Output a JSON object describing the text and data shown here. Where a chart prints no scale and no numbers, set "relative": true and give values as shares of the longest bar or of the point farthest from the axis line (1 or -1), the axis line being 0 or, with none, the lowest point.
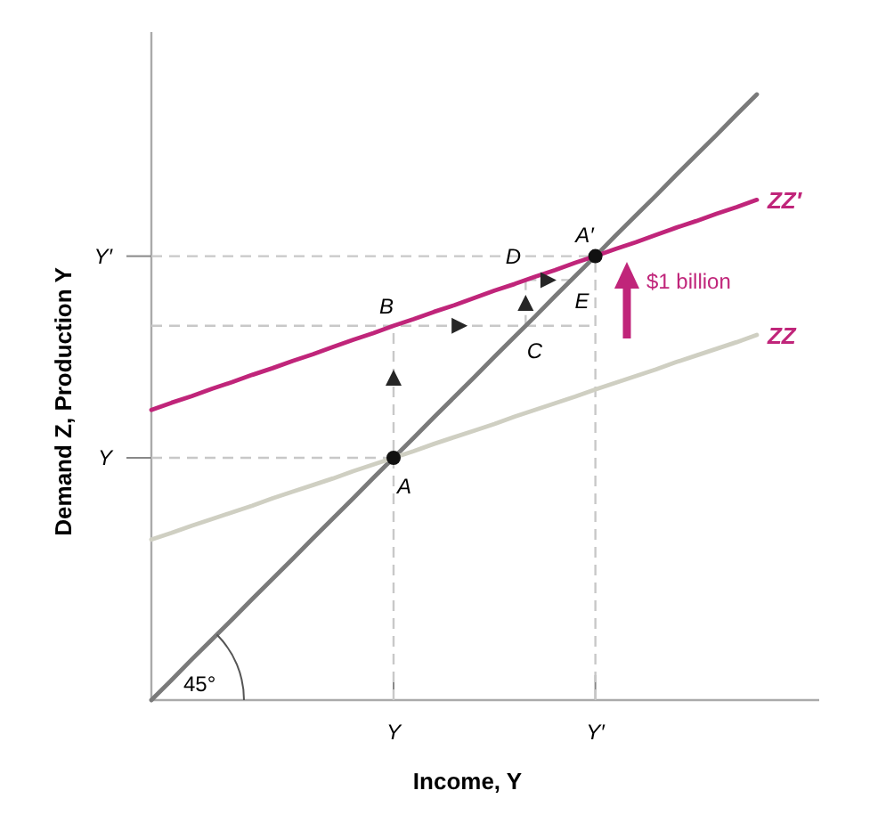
{
  "chart_data": {
    "type": "line",
    "xlabel": "Income, Y",
    "ylabel": "Demand Z, Production Y",
    "relative": true,
    "legend": false,
    "categories": [
      null,
      null,
      null,
      null,
      null,
      null,
      null,
      null,
      null,
      null,
      null,
      null,
      "Y",
      null,
      null,
      null,
      null,
      null,
      null,
      null,
      null,
      null,
      "Y′",
      null,
      null,
      null,
      null,
      null,
      null,
      null,
      null
    ],
    "series": [
      {
        "color": "#7a7a7a",
        "values": [
          0,
          0.033,
          0.067,
          0.1,
          0.133,
          0.167,
          0.2,
          0.233,
          0.267,
          0.3,
          0.333,
          0.367,
          0.4,
          0.433,
          0.467,
          0.5,
          0.533,
          0.567,
          0.6,
          0.633,
          0.667,
          0.7,
          0.733,
          0.767,
          0.8,
          0.833,
          0.867,
          0.9,
          0.933,
          0.967,
          1
        ]
      },
      {
        "name": "ZZ",
        "color": "#cfcfc2",
        "values": [
          0.265,
          0.276,
          0.288,
          0.299,
          0.31,
          0.321,
          0.333,
          0.344,
          0.355,
          0.366,
          0.378,
          0.389,
          0.4,
          0.411,
          0.423,
          0.434,
          0.445,
          0.456,
          0.468,
          0.479,
          0.49,
          0.501,
          0.513,
          0.524,
          0.535,
          0.546,
          0.558,
          0.569,
          0.58,
          0.591,
          0.603
        ]
      },
      {
        "name": "ZZ′",
        "color": "#c0257a",
        "values": [
          0.479,
          0.491,
          0.502,
          0.514,
          0.525,
          0.537,
          0.548,
          0.56,
          0.571,
          0.583,
          0.595,
          0.606,
          0.618,
          0.629,
          0.641,
          0.652,
          0.664,
          0.676,
          0.687,
          0.699,
          0.71,
          0.722,
          0.733,
          0.745,
          0.756,
          0.768,
          0.78,
          0.791,
          0.803,
          0.814,
          0.826
        ]
      },
      {
        "type": "scatter",
        "marker": "circle",
        "color": "#111111",
        "values": [
          null,
          null,
          null,
          null,
          null,
          null,
          null,
          null,
          null,
          null,
          null,
          null,
          0.4,
          null,
          null,
          null,
          null,
          null,
          null,
          null,
          null,
          null,
          0.733,
          null,
          null,
          null,
          null,
          null,
          null,
          null,
          null
        ]
      }
    ],
    "annotations": [
      "A",
      "A′",
      "B",
      "C",
      "D",
      "E",
      "$1 billion",
      "45°",
      "Y",
      "Y′"
    ]
  }
}
